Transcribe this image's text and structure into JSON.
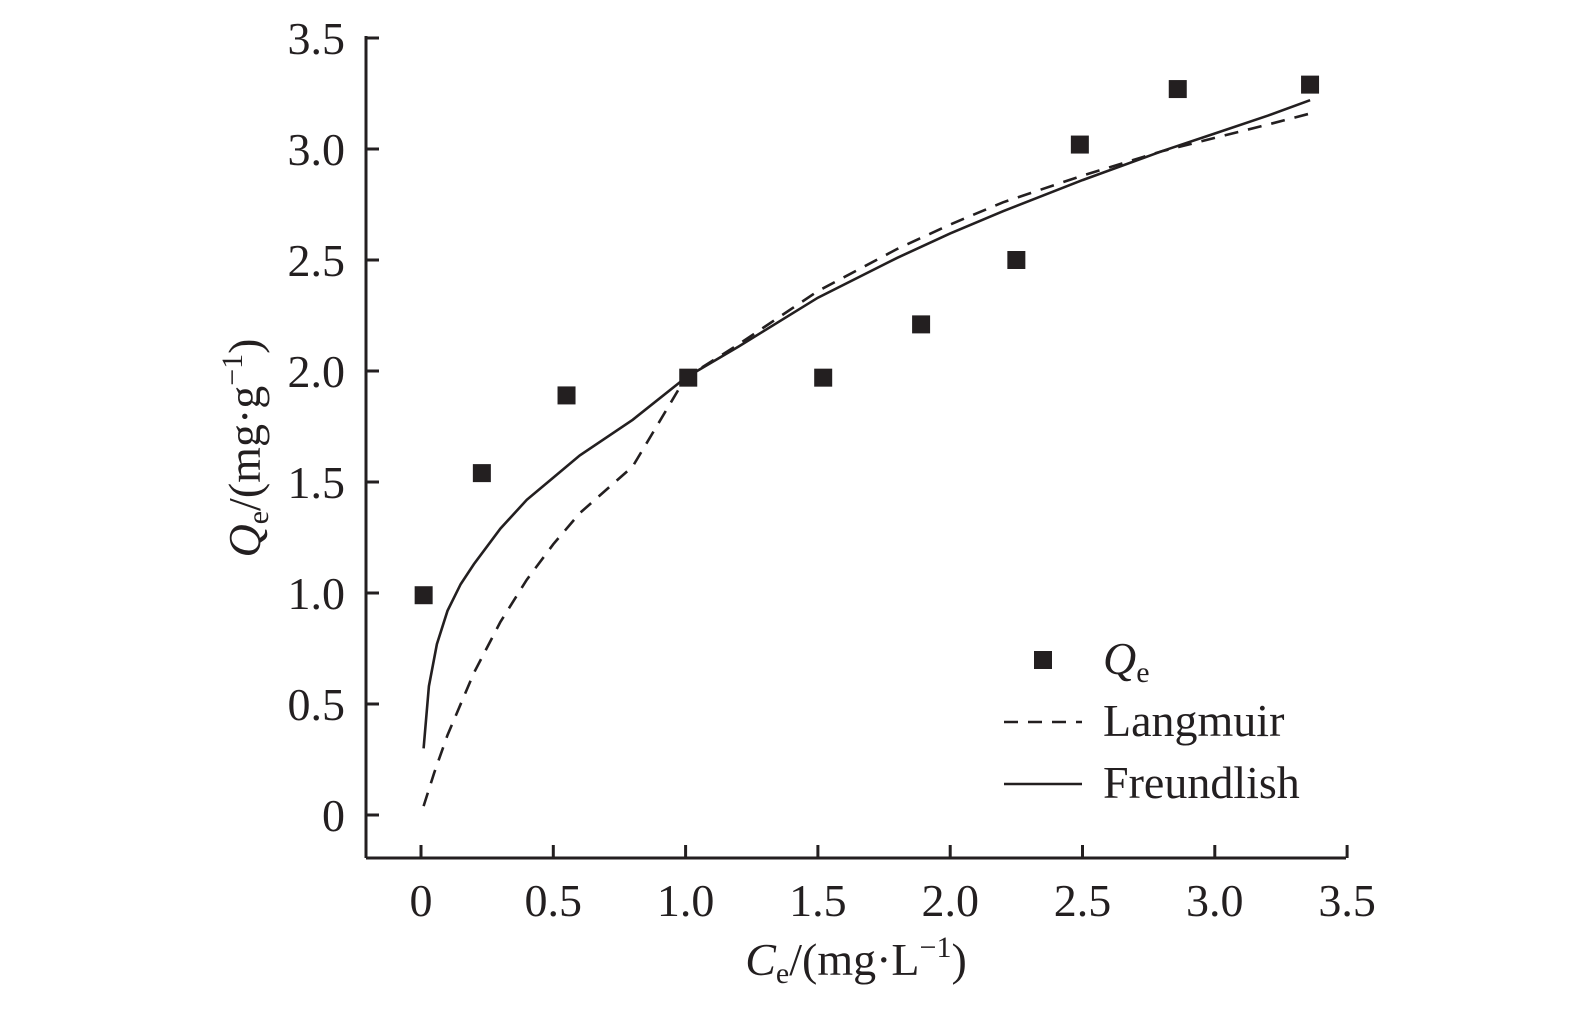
{
  "chart_data": {
    "type": "scatter",
    "xlabel": {
      "symbol": "C",
      "subscript": "e",
      "unit_prefix": "/(mg·L",
      "unit_sup": "−1",
      "unit_suffix": ")"
    },
    "ylabel": {
      "symbol": "Q",
      "subscript": "e",
      "unit_prefix": "/(mg·g",
      "unit_sup": "−1",
      "unit_suffix": ")"
    },
    "xlim": [
      -0.2,
      3.5
    ],
    "ylim": [
      -0.2,
      3.5
    ],
    "xticks": [
      "0",
      "0.5",
      "1.0",
      "1.5",
      "2.0",
      "2.5",
      "3.0",
      "3.5"
    ],
    "xtick_values": [
      0,
      0.5,
      1.0,
      1.5,
      2.0,
      2.5,
      3.0,
      3.5
    ],
    "yticks": [
      "0",
      "0.5",
      "1.0",
      "1.5",
      "2.0",
      "2.5",
      "3.0",
      "3.5"
    ],
    "ytick_values": [
      0,
      0.5,
      1.0,
      1.5,
      2.0,
      2.5,
      3.0,
      3.5
    ],
    "legend_position": "bottom-right",
    "color": "#231f20",
    "series": [
      {
        "name": {
          "symbol": "Q",
          "subscript": "e"
        },
        "kind": "markers",
        "marker": "square",
        "x": [
          0.01,
          0.23,
          0.55,
          1.01,
          1.52,
          1.89,
          2.25,
          2.49,
          2.86,
          3.36
        ],
        "y": [
          0.99,
          1.54,
          1.89,
          1.97,
          1.97,
          2.21,
          2.5,
          3.02,
          3.27,
          3.29
        ]
      },
      {
        "name": "Langmuir",
        "kind": "line",
        "dash": "dashed",
        "x": [
          0.01,
          0.05,
          0.1,
          0.2,
          0.3,
          0.4,
          0.5,
          0.6,
          0.8,
          1.0,
          1.2,
          1.5,
          1.8,
          2.0,
          2.2,
          2.5,
          2.8,
          3.0,
          3.2,
          3.36
        ],
        "y": [
          0.04,
          0.19,
          0.36,
          0.64,
          0.87,
          1.06,
          1.22,
          1.36,
          1.57,
          1.97,
          2.12,
          2.36,
          2.55,
          2.66,
          2.76,
          2.88,
          2.99,
          3.05,
          3.11,
          3.16
        ]
      },
      {
        "name": "Freundlish",
        "kind": "line",
        "dash": "solid",
        "x": [
          0.01,
          0.03,
          0.06,
          0.1,
          0.15,
          0.2,
          0.3,
          0.4,
          0.5,
          0.6,
          0.8,
          1.0,
          1.2,
          1.5,
          1.8,
          2.0,
          2.2,
          2.5,
          2.8,
          3.0,
          3.2,
          3.36
        ],
        "y": [
          0.3,
          0.58,
          0.77,
          0.92,
          1.04,
          1.13,
          1.29,
          1.42,
          1.52,
          1.62,
          1.78,
          1.97,
          2.11,
          2.33,
          2.51,
          2.62,
          2.72,
          2.86,
          2.99,
          3.07,
          3.15,
          3.22
        ]
      }
    ]
  }
}
